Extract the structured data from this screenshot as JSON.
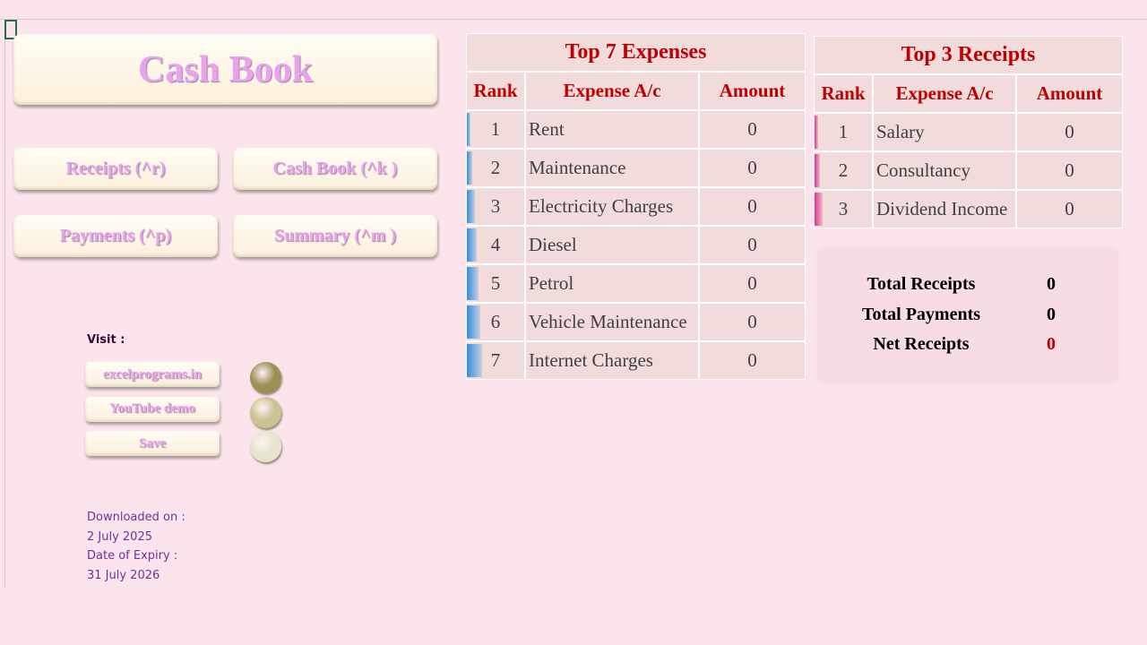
{
  "title_button": "Cash Book",
  "buttons": [
    "Receipts (^r)",
    "Cash Book (^k )",
    "Payments (^p)",
    "Summary (^m )"
  ],
  "visit": {
    "label": "Visit :",
    "links": [
      "excelprograms.in",
      "YouTube demo",
      "Save"
    ]
  },
  "info": {
    "downloaded_label": "Downloaded on :",
    "downloaded": "2 July 2025",
    "expiry_label": "Date of Expiry :",
    "expiry": "31 July 2026"
  },
  "expenses": {
    "title": "Top 7 Expenses",
    "columns": [
      "Rank",
      "Expense A/c",
      "Amount"
    ],
    "rows": [
      [
        1,
        "Rent",
        0
      ],
      [
        2,
        "Maintenance",
        0
      ],
      [
        3,
        "Electricity Charges",
        0
      ],
      [
        4,
        "Diesel",
        0
      ],
      [
        5,
        "Petrol",
        0
      ],
      [
        6,
        "Vehicle Maintenance",
        0
      ],
      [
        7,
        "Internet Charges",
        0
      ]
    ]
  },
  "receipts": {
    "title": "Top 3 Receipts",
    "columns": [
      "Rank",
      "Expense A/c",
      "Amount"
    ],
    "rows": [
      [
        1,
        "Salary",
        0
      ],
      [
        2,
        "Consultancy",
        0
      ],
      [
        3,
        "Dividend Income",
        0
      ]
    ]
  },
  "summary": {
    "rows": [
      [
        "Total Receipts",
        0
      ],
      [
        "Total Payments",
        0
      ],
      [
        "Net Receipts",
        0
      ]
    ]
  }
}
